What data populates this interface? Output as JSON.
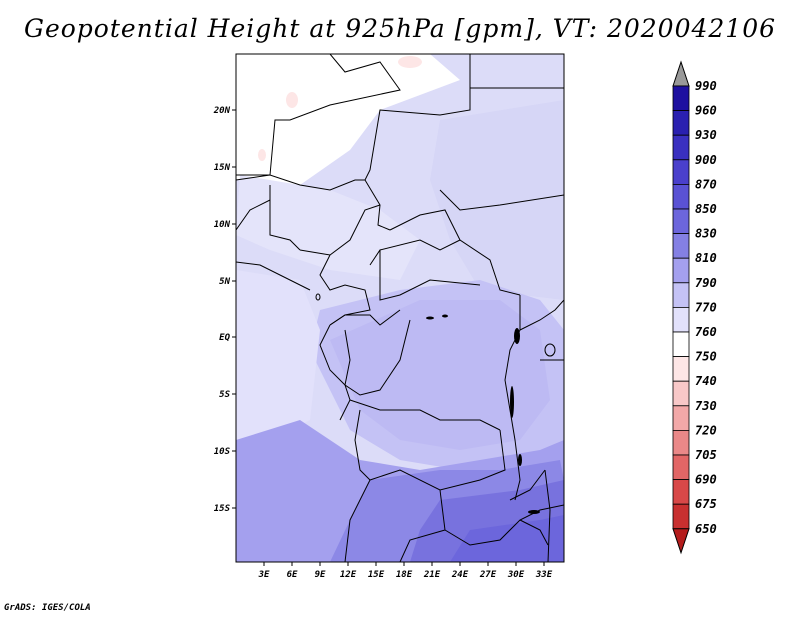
{
  "title": "Geopotential Height at 925hPa [gpm], VT: 2020042106",
  "footer": "GrADS: IGES/COLA",
  "map": {
    "lat_labels": [
      "20N",
      "15N",
      "10N",
      "5N",
      "EQ",
      "5S",
      "10S",
      "15S"
    ],
    "lon_labels": [
      "3E",
      "6E",
      "9E",
      "12E",
      "15E",
      "18E",
      "21E",
      "24E",
      "27E",
      "30E",
      "33E"
    ]
  },
  "colorbar": {
    "labels": [
      "990",
      "960",
      "930",
      "900",
      "870",
      "850",
      "830",
      "810",
      "790",
      "770",
      "760",
      "750",
      "740",
      "730",
      "720",
      "705",
      "690",
      "675",
      "650"
    ],
    "colors": [
      "#1e10a0",
      "#2a20b0",
      "#3a30c0",
      "#4a40cc",
      "#5a52d4",
      "#6c66dc",
      "#8480e4",
      "#a4a0ee",
      "#c4c2f5",
      "#e2e1fb",
      "#ffffff",
      "#fde6e6",
      "#f8c8c8",
      "#f2a8a8",
      "#ea8888",
      "#e26666",
      "#d84848",
      "#c83030",
      "#b41c1c"
    ]
  }
}
